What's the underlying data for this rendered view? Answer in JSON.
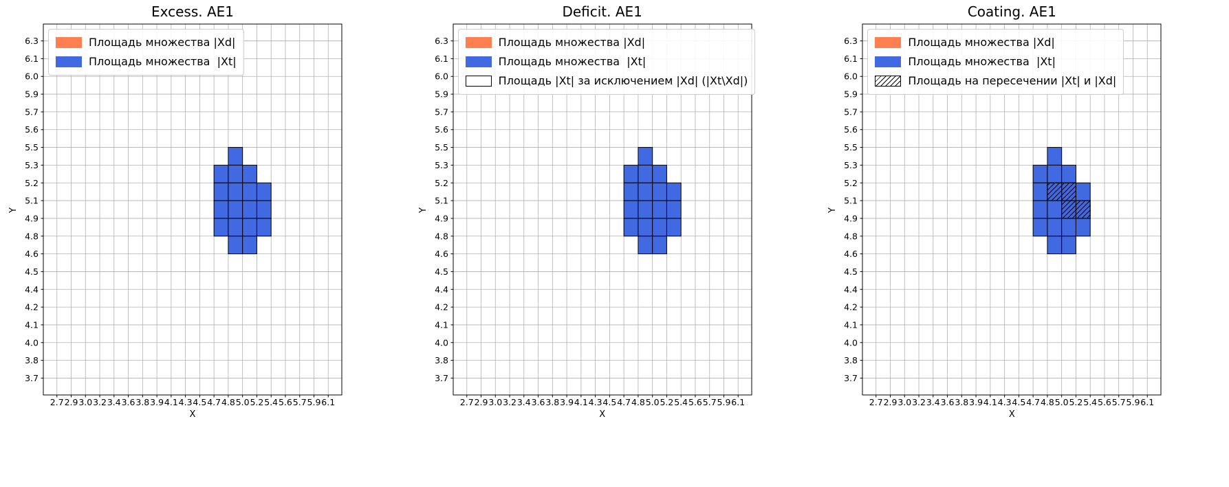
{
  "figure": {
    "background": "#ffffff"
  },
  "colors": {
    "xd": "#FF7F50",
    "xt": "#4169E1",
    "grid": "#b0b0b0",
    "axis": "#000000",
    "cell_edge": "#000000",
    "legend_border": "#cccccc",
    "hatch": "#000000"
  },
  "chart_data": [
    {
      "type": "heatmap",
      "title": "Excess. AE1",
      "xlabel": "X",
      "ylabel": "Y",
      "grid": true,
      "legend_position": "upper left",
      "x_ticks": [
        "2.7",
        "2.9",
        "3.0",
        "3.2",
        "3.4",
        "3.6",
        "3.8",
        "3.9",
        "4.1",
        "4.3",
        "4.5",
        "4.7",
        "4.8",
        "5.0",
        "5.2",
        "5.4",
        "5.6",
        "5.7",
        "5.9",
        "6.1"
      ],
      "y_ticks": [
        "3.7",
        "3.8",
        "4.0",
        "4.1",
        "4.2",
        "4.4",
        "4.5",
        "4.6",
        "4.8",
        "4.9",
        "5.1",
        "5.2",
        "5.3",
        "5.5",
        "5.6",
        "5.7",
        "5.9",
        "6.0",
        "6.1",
        "6.3"
      ],
      "legend": [
        {
          "swatch": "filled-xd",
          "label": "Площадь множества |Xd|"
        },
        {
          "swatch": "filled-xt",
          "label": "Площадь множества  |Xt|"
        }
      ],
      "cells_xt_col_row": [
        [
          12,
          12
        ],
        [
          11,
          11
        ],
        [
          12,
          11
        ],
        [
          13,
          11
        ],
        [
          11,
          10
        ],
        [
          12,
          10
        ],
        [
          13,
          10
        ],
        [
          14,
          10
        ],
        [
          11,
          9
        ],
        [
          12,
          9
        ],
        [
          13,
          9
        ],
        [
          14,
          9
        ],
        [
          11,
          8
        ],
        [
          12,
          8
        ],
        [
          13,
          8
        ],
        [
          14,
          8
        ],
        [
          12,
          7
        ],
        [
          13,
          7
        ]
      ],
      "cells_xd_col_row": [],
      "cells_hatched_col_row": []
    },
    {
      "type": "heatmap",
      "title": "Deficit. AE1",
      "xlabel": "X",
      "ylabel": "Y",
      "grid": true,
      "legend_position": "upper left",
      "x_ticks": [
        "2.7",
        "2.9",
        "3.0",
        "3.2",
        "3.4",
        "3.6",
        "3.8",
        "3.9",
        "4.1",
        "4.3",
        "4.5",
        "4.7",
        "4.8",
        "5.0",
        "5.2",
        "5.4",
        "5.6",
        "5.7",
        "5.9",
        "6.1"
      ],
      "y_ticks": [
        "3.7",
        "3.8",
        "4.0",
        "4.1",
        "4.2",
        "4.4",
        "4.5",
        "4.6",
        "4.8",
        "4.9",
        "5.1",
        "5.2",
        "5.3",
        "5.5",
        "5.6",
        "5.7",
        "5.9",
        "6.0",
        "6.1",
        "6.3"
      ],
      "legend": [
        {
          "swatch": "filled-xd",
          "label": "Площадь множества |Xd|"
        },
        {
          "swatch": "filled-xt",
          "label": "Площадь множества  |Xt|"
        },
        {
          "swatch": "empty",
          "label": "Площадь |Xt| за исключением |Xd| (|Xt\\Xd|)"
        }
      ],
      "cells_xt_col_row": [
        [
          12,
          12
        ],
        [
          11,
          11
        ],
        [
          12,
          11
        ],
        [
          13,
          11
        ],
        [
          11,
          10
        ],
        [
          12,
          10
        ],
        [
          13,
          10
        ],
        [
          14,
          10
        ],
        [
          11,
          9
        ],
        [
          12,
          9
        ],
        [
          13,
          9
        ],
        [
          14,
          9
        ],
        [
          11,
          8
        ],
        [
          12,
          8
        ],
        [
          13,
          8
        ],
        [
          14,
          8
        ],
        [
          12,
          7
        ],
        [
          13,
          7
        ]
      ],
      "cells_xd_col_row": [],
      "cells_hatched_col_row": []
    },
    {
      "type": "heatmap",
      "title": "Coating. AE1",
      "xlabel": "X",
      "ylabel": "Y",
      "grid": true,
      "legend_position": "upper left",
      "x_ticks": [
        "2.7",
        "2.9",
        "3.0",
        "3.2",
        "3.4",
        "3.6",
        "3.8",
        "3.9",
        "4.1",
        "4.3",
        "4.5",
        "4.7",
        "4.8",
        "5.0",
        "5.2",
        "5.4",
        "5.6",
        "5.7",
        "5.9",
        "6.1"
      ],
      "y_ticks": [
        "3.7",
        "3.8",
        "4.0",
        "4.1",
        "4.2",
        "4.4",
        "4.5",
        "4.6",
        "4.8",
        "4.9",
        "5.1",
        "5.2",
        "5.3",
        "5.5",
        "5.6",
        "5.7",
        "5.9",
        "6.0",
        "6.1",
        "6.3"
      ],
      "legend": [
        {
          "swatch": "filled-xd",
          "label": "Площадь множества |Xd|"
        },
        {
          "swatch": "filled-xt",
          "label": "Площадь множества  |Xt|"
        },
        {
          "swatch": "hatched",
          "label": "Площадь на пересечении |Xt| и |Xd|"
        }
      ],
      "cells_xt_col_row": [
        [
          12,
          12
        ],
        [
          11,
          11
        ],
        [
          12,
          11
        ],
        [
          13,
          11
        ],
        [
          11,
          10
        ],
        [
          12,
          10
        ],
        [
          13,
          10
        ],
        [
          14,
          10
        ],
        [
          11,
          9
        ],
        [
          12,
          9
        ],
        [
          13,
          9
        ],
        [
          14,
          9
        ],
        [
          11,
          8
        ],
        [
          12,
          8
        ],
        [
          13,
          8
        ],
        [
          14,
          8
        ],
        [
          12,
          7
        ],
        [
          13,
          7
        ]
      ],
      "cells_xd_col_row": [],
      "cells_hatched_col_row": [
        [
          12,
          10
        ],
        [
          13,
          10
        ],
        [
          13,
          9
        ],
        [
          14,
          9
        ]
      ]
    }
  ]
}
